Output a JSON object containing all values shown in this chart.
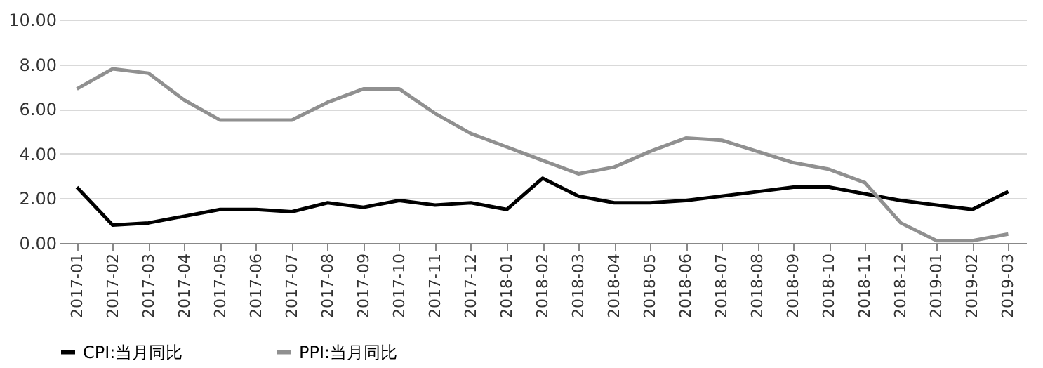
{
  "chart_data": {
    "type": "line",
    "categories": [
      "2017-01",
      "2017-02",
      "2017-03",
      "2017-04",
      "2017-05",
      "2017-06",
      "2017-07",
      "2017-08",
      "2017-09",
      "2017-10",
      "2017-11",
      "2017-12",
      "2018-01",
      "2018-02",
      "2018-03",
      "2018-04",
      "2018-05",
      "2018-06",
      "2018-07",
      "2018-08",
      "2018-09",
      "2018-10",
      "2018-11",
      "2018-12",
      "2019-01",
      "2019-02",
      "2019-03"
    ],
    "series": [
      {
        "name": "CPI:当月同比",
        "color": "#000000",
        "values": [
          2.5,
          0.8,
          0.9,
          1.2,
          1.5,
          1.5,
          1.4,
          1.8,
          1.6,
          1.9,
          1.7,
          1.8,
          1.5,
          2.9,
          2.1,
          1.8,
          1.8,
          1.9,
          2.1,
          2.3,
          2.5,
          2.5,
          2.2,
          1.9,
          1.7,
          1.5,
          2.3
        ]
      },
      {
        "name": "PPI:当月同比",
        "color": "#909090",
        "values": [
          6.9,
          7.8,
          7.6,
          6.4,
          5.5,
          5.5,
          5.5,
          6.3,
          6.9,
          6.9,
          5.8,
          4.9,
          4.3,
          3.7,
          3.1,
          3.4,
          4.1,
          4.7,
          4.6,
          4.1,
          3.6,
          3.3,
          2.7,
          0.9,
          0.1,
          0.1,
          0.4
        ]
      }
    ],
    "ylim": [
      0,
      10
    ],
    "yticks": [
      {
        "value": 0,
        "label": "0.00"
      },
      {
        "value": 2,
        "label": "2.00"
      },
      {
        "value": 4,
        "label": "4.00"
      },
      {
        "value": 6,
        "label": "6.00"
      },
      {
        "value": 8,
        "label": "8.00"
      },
      {
        "value": 10,
        "label": "10.00"
      }
    ],
    "grid": "y",
    "legend": "bottom",
    "marker": "none",
    "line_style": "solid"
  }
}
